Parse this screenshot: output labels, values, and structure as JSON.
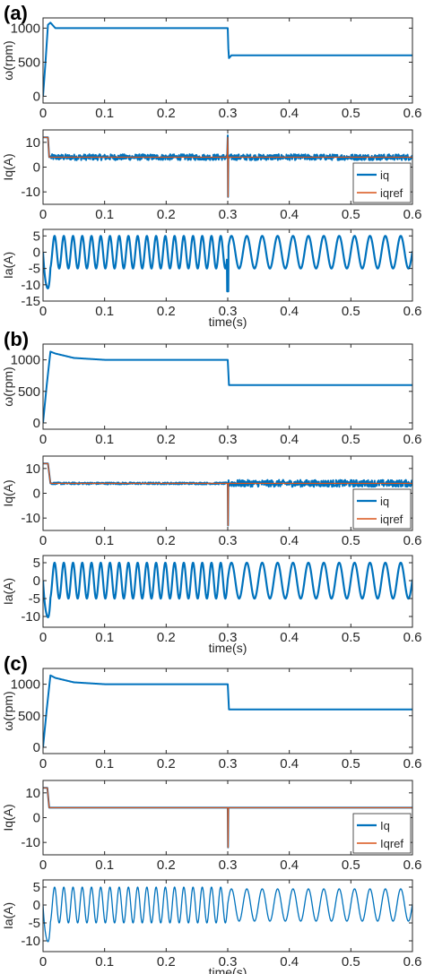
{
  "colors": {
    "iq": "#0072BD",
    "iqref": "#D95319",
    "speed": "#0072BD",
    "ia": "#0072BD",
    "axis": "#262626"
  },
  "chart_data": [
    {
      "panel": "(a)",
      "plots": [
        {
          "type": "line",
          "ylabel": "ω(rpm)",
          "xlim": [
            0,
            0.6
          ],
          "ylim": [
            -100,
            1150
          ],
          "xticks": [
            "0",
            "0.1",
            "0.2",
            "0.3",
            "0.4",
            "0.5",
            "0.6"
          ],
          "yticks": [
            0,
            500,
            1000
          ],
          "series": [
            {
              "color_key": "speed",
              "x": [
                0,
                0.004,
                0.008,
                0.012,
                0.02,
                0.04,
                0.1,
                0.2,
                0.3,
                0.3,
                0.301,
                0.302,
                0.306,
                0.32,
                0.6
              ],
              "y": [
                0,
                500,
                1050,
                1080,
                1000,
                1000,
                1000,
                1000,
                1000,
                1000,
                700,
                560,
                600,
                600,
                600
              ]
            }
          ]
        },
        {
          "type": "line",
          "ylabel": "Iq(A)",
          "xlim": [
            0,
            0.6
          ],
          "ylim": [
            -15,
            15
          ],
          "xticks": [
            "0",
            "0.1",
            "0.2",
            "0.3",
            "0.4",
            "0.5",
            "0.6"
          ],
          "yticks": [
            -10,
            0,
            10
          ],
          "legend": {
            "position": "bottom-right",
            "entries": [
              "iq",
              "iqref"
            ]
          },
          "series": [
            {
              "name": "iq",
              "color_key": "iq",
              "noise": 1.2,
              "x": [
                0,
                0.008,
                0.01,
                0.012,
                0.299,
                0.3,
                0.3005,
                0.301,
                0.302,
                0.6
              ],
              "y": [
                12,
                12,
                4,
                4,
                4,
                12,
                -12,
                4,
                4,
                4
              ]
            },
            {
              "name": "iqref",
              "color_key": "iqref",
              "x": [
                0,
                0.008,
                0.01,
                0.012,
                0.299,
                0.3,
                0.3005,
                0.301,
                0.302,
                0.6
              ],
              "y": [
                12,
                12,
                4,
                4,
                4,
                12,
                -12,
                4,
                4,
                4
              ]
            }
          ]
        },
        {
          "type": "line",
          "ylabel": "Ia(A)",
          "xlabel": "time(s)",
          "xlim": [
            0,
            0.6
          ],
          "ylim": [
            -15,
            7
          ],
          "xticks": [
            "0",
            "0.1",
            "0.2",
            "0.3",
            "0.4",
            "0.5",
            "0.6"
          ],
          "yticks": [
            -15,
            -10,
            -5,
            0,
            5
          ],
          "series": [
            {
              "color_key": "ia",
              "wave": {
                "amp_before": 5,
                "freq_before": 66.7,
                "amp_after": 5,
                "freq_after": 40,
                "switch": 0.3,
                "dip_start": -12,
                "dip_switch": -12
              }
            }
          ]
        }
      ]
    },
    {
      "panel": "(b)",
      "plots": [
        {
          "type": "line",
          "ylabel": "ω(rpm)",
          "xlim": [
            0,
            0.6
          ],
          "ylim": [
            -100,
            1250
          ],
          "xticks": [
            "0",
            "0.1",
            "0.2",
            "0.3",
            "0.4",
            "0.5",
            "0.6"
          ],
          "yticks": [
            0,
            500,
            1000
          ],
          "series": [
            {
              "color_key": "speed",
              "x": [
                0,
                0.006,
                0.012,
                0.02,
                0.05,
                0.1,
                0.2,
                0.3,
                0.3,
                0.302,
                0.306,
                0.6
              ],
              "y": [
                0,
                600,
                1130,
                1100,
                1030,
                1000,
                1000,
                1000,
                1000,
                600,
                600,
                600
              ]
            }
          ]
        },
        {
          "type": "line",
          "ylabel": "Iq(A)",
          "xlim": [
            0,
            0.6
          ],
          "ylim": [
            -15,
            15
          ],
          "xticks": [
            "0",
            "0.1",
            "0.2",
            "0.3",
            "0.4",
            "0.5",
            "0.6"
          ],
          "yticks": [
            -10,
            0,
            10
          ],
          "legend": {
            "position": "bottom-right",
            "entries": [
              "iq",
              "iqref"
            ]
          },
          "series": [
            {
              "name": "iq",
              "color_key": "iq",
              "noise_before": 0.4,
              "noise_after": 1.4,
              "x": [
                0,
                0.008,
                0.012,
                0.015,
                0.299,
                0.3,
                0.3005,
                0.301,
                0.302,
                0.6
              ],
              "y": [
                12,
                12,
                4,
                4,
                4,
                4,
                -13,
                4,
                4,
                4
              ]
            },
            {
              "name": "iqref",
              "color_key": "iqref",
              "x": [
                0,
                0.008,
                0.012,
                0.015,
                0.299,
                0.3,
                0.3005,
                0.301,
                0.302,
                0.6
              ],
              "y": [
                12,
                12,
                4,
                4,
                4,
                4,
                -13,
                4,
                4,
                4
              ]
            }
          ]
        },
        {
          "type": "line",
          "ylabel": "Ia(A)",
          "xlabel": "time(s)",
          "xlim": [
            0,
            0.6
          ],
          "ylim": [
            -13,
            7
          ],
          "xticks": [
            "0",
            "0.1",
            "0.2",
            "0.3",
            "0.4",
            "0.5",
            "0.6"
          ],
          "yticks": [
            -10,
            -5,
            0,
            5
          ],
          "series": [
            {
              "color_key": "ia",
              "wave": {
                "amp_before": 5,
                "freq_before": 66.7,
                "amp_after": 5,
                "freq_after": 40,
                "switch": 0.3,
                "dip_start": -11,
                "dip_switch": 0
              }
            }
          ]
        }
      ]
    },
    {
      "panel": "(c)",
      "plots": [
        {
          "type": "line",
          "ylabel": "ω(rpm)",
          "xlim": [
            0,
            0.6
          ],
          "ylim": [
            -100,
            1250
          ],
          "xticks": [
            "0",
            "0.1",
            "0.2",
            "0.3",
            "0.4",
            "0.5",
            "0.6"
          ],
          "yticks": [
            0,
            500,
            1000
          ],
          "series": [
            {
              "color_key": "speed",
              "x": [
                0,
                0.006,
                0.012,
                0.02,
                0.05,
                0.1,
                0.2,
                0.3,
                0.3,
                0.302,
                0.306,
                0.6
              ],
              "y": [
                0,
                600,
                1140,
                1100,
                1030,
                1000,
                1000,
                1000,
                1000,
                600,
                600,
                600
              ]
            }
          ]
        },
        {
          "type": "line",
          "ylabel": "Iq(A)",
          "xlim": [
            0,
            0.6
          ],
          "ylim": [
            -15,
            15
          ],
          "xticks": [
            "0",
            "0.1",
            "0.2",
            "0.3",
            "0.4",
            "0.5",
            "0.6"
          ],
          "yticks": [
            -10,
            0,
            10
          ],
          "legend": {
            "position": "bottom-right",
            "entries": [
              "Iq",
              "Iqref"
            ]
          },
          "series": [
            {
              "name": "Iq",
              "color_key": "iq",
              "x": [
                0,
                0.007,
                0.01,
                0.013,
                0.299,
                0.3,
                0.3005,
                0.301,
                0.302,
                0.6
              ],
              "y": [
                12,
                12,
                4,
                4,
                4,
                4,
                -12,
                4,
                4,
                4
              ]
            },
            {
              "name": "Iqref",
              "color_key": "iqref",
              "x": [
                0,
                0.007,
                0.01,
                0.013,
                0.299,
                0.3,
                0.3005,
                0.301,
                0.302,
                0.6
              ],
              "y": [
                12,
                12,
                4,
                4,
                4,
                4,
                -12,
                4,
                4,
                4
              ]
            }
          ]
        },
        {
          "type": "line",
          "ylabel": "Ia(A)",
          "xlabel": "time(s)",
          "xlim": [
            0,
            0.6
          ],
          "ylim": [
            -13,
            7
          ],
          "xticks": [
            "0",
            "0.1",
            "0.2",
            "0.3",
            "0.4",
            "0.5",
            "0.6"
          ],
          "yticks": [
            -10,
            -5,
            0,
            5
          ],
          "series": [
            {
              "color_key": "ia",
              "thin": true,
              "wave": {
                "amp_before": 5,
                "freq_before": 66.7,
                "amp_after": 4.5,
                "freq_after": 40,
                "switch": 0.3,
                "dip_start": -11,
                "dip_switch": 0
              }
            }
          ]
        }
      ]
    }
  ]
}
